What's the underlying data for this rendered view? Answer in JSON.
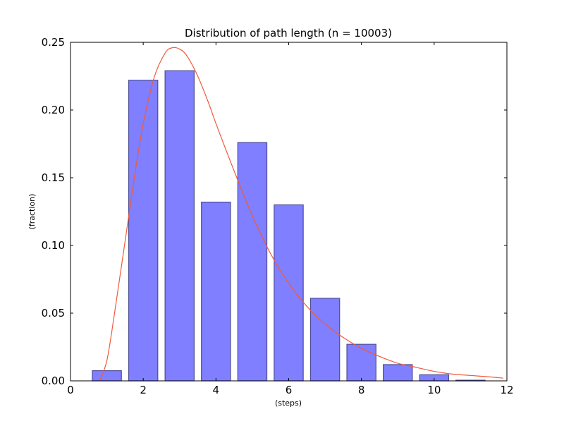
{
  "chart_data": {
    "type": "bar",
    "title": "Distribution of path length (n = 10003)",
    "xlabel": "(steps)",
    "ylabel": "(fraction)",
    "xlim": [
      0,
      12
    ],
    "ylim": [
      0,
      0.25
    ],
    "x_ticks": [
      "0",
      "2",
      "4",
      "6",
      "8",
      "10",
      "12"
    ],
    "y_ticks": [
      "0.00",
      "0.05",
      "0.10",
      "0.15",
      "0.20",
      "0.25"
    ],
    "grid": false,
    "bars": {
      "color": "#7f7fff",
      "edge_color": "#4d4d99",
      "x": [
        1,
        2,
        3,
        4,
        5,
        6,
        7,
        8,
        9,
        10,
        11
      ],
      "values": [
        0.0075,
        0.222,
        0.229,
        0.132,
        0.176,
        0.13,
        0.061,
        0.027,
        0.012,
        0.0045,
        0.0005
      ]
    },
    "fit_curve": {
      "type": "line",
      "color": "#f05a3c",
      "x": [
        0.8,
        1.0,
        1.2,
        1.5,
        1.8,
        2.0,
        2.3,
        2.6,
        2.8,
        3.0,
        3.2,
        3.5,
        3.8,
        4.0,
        4.5,
        5.0,
        5.5,
        6.0,
        6.5,
        7.0,
        7.5,
        8.0,
        8.5,
        9.0,
        9.5,
        10.0,
        10.5,
        11.0,
        11.5,
        11.9
      ],
      "y": [
        0.0,
        0.015,
        0.048,
        0.103,
        0.158,
        0.19,
        0.224,
        0.242,
        0.246,
        0.245,
        0.24,
        0.225,
        0.205,
        0.19,
        0.155,
        0.122,
        0.094,
        0.072,
        0.055,
        0.042,
        0.032,
        0.024,
        0.018,
        0.013,
        0.01,
        0.007,
        0.005,
        0.004,
        0.003,
        0.002
      ]
    }
  }
}
